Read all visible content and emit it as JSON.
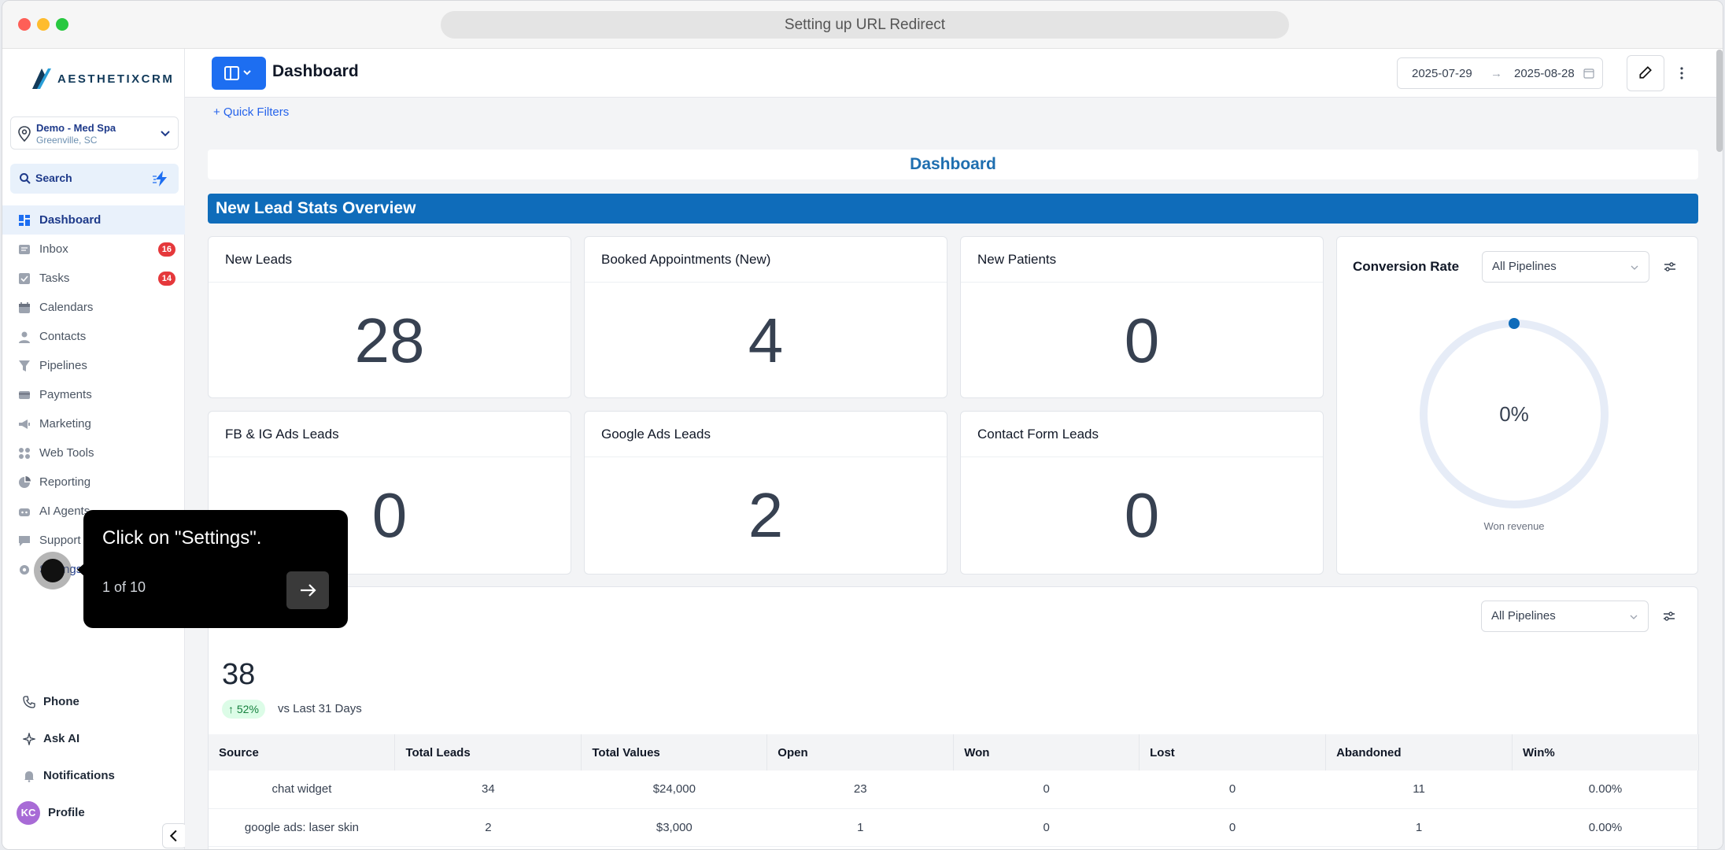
{
  "browser": {
    "title": "Setting up URL Redirect"
  },
  "brand": {
    "logo_text": "AESTHETIXCRM"
  },
  "location": {
    "name": "Demo - Med Spa",
    "city": "Greenville, SC"
  },
  "search": {
    "label": "Search"
  },
  "nav": [
    {
      "label": "Dashboard",
      "icon": "dashboard-icon",
      "active": true
    },
    {
      "label": "Inbox",
      "icon": "inbox-icon",
      "badge": "16"
    },
    {
      "label": "Tasks",
      "icon": "tasks-icon",
      "badge": "14"
    },
    {
      "label": "Calendars",
      "icon": "calendar-icon"
    },
    {
      "label": "Contacts",
      "icon": "contacts-icon"
    },
    {
      "label": "Pipelines",
      "icon": "pipelines-icon"
    },
    {
      "label": "Payments",
      "icon": "payments-icon"
    },
    {
      "label": "Marketing",
      "icon": "marketing-icon"
    },
    {
      "label": "Web Tools",
      "icon": "web-tools-icon"
    },
    {
      "label": "Reporting",
      "icon": "reporting-icon"
    },
    {
      "label": "AI Agents",
      "icon": "ai-agents-icon"
    },
    {
      "label": "Support",
      "icon": "support-icon"
    },
    {
      "label": "Settings",
      "icon": "settings-icon"
    }
  ],
  "bottom_nav": {
    "phone": "Phone",
    "ask_ai": "Ask AI",
    "notifications": "Notifications",
    "profile": "Profile",
    "avatar_initials": "KC"
  },
  "header": {
    "title": "Dashboard",
    "date_from": "2025-07-29",
    "date_arrow": "→",
    "date_to": "2025-08-28"
  },
  "quick_filters": "+ Quick Filters",
  "dashboard_title": "Dashboard",
  "section_title": "New Lead Stats Overview",
  "stats": {
    "new_leads": {
      "label": "New Leads",
      "value": "28"
    },
    "booked": {
      "label": "Booked Appointments (New)",
      "value": "4"
    },
    "new_patients": {
      "label": "New Patients",
      "value": "0"
    },
    "fb_ig": {
      "label": "FB & IG Ads Leads",
      "value": "0"
    },
    "google_ads": {
      "label": "Google Ads Leads",
      "value": "2"
    },
    "contact_form": {
      "label": "Contact Form Leads",
      "value": "0"
    }
  },
  "conversion": {
    "title": "Conversion Rate",
    "pipeline_select": "All Pipelines",
    "value": "0%",
    "subtitle": "Won revenue"
  },
  "pipeline_card": {
    "select": "All Pipelines",
    "total": "38",
    "growth": "↑ 52%",
    "vs_label": "vs Last 31 Days",
    "columns": [
      "Source",
      "Total Leads",
      "Total Values",
      "Open",
      "Won",
      "Lost",
      "Abandoned",
      "Win%"
    ],
    "rows": [
      [
        "chat widget",
        "34",
        "$24,000",
        "23",
        "0",
        "0",
        "11",
        "0.00%"
      ],
      [
        "google ads: laser skin",
        "2",
        "$3,000",
        "1",
        "0",
        "0",
        "1",
        "0.00%"
      ]
    ]
  },
  "tour": {
    "text": "Click on \"Settings\".",
    "step": "1 of 10"
  },
  "colors": {
    "accent": "#1d6ef1",
    "section": "#0f6cba",
    "badge": "#e5383b"
  }
}
